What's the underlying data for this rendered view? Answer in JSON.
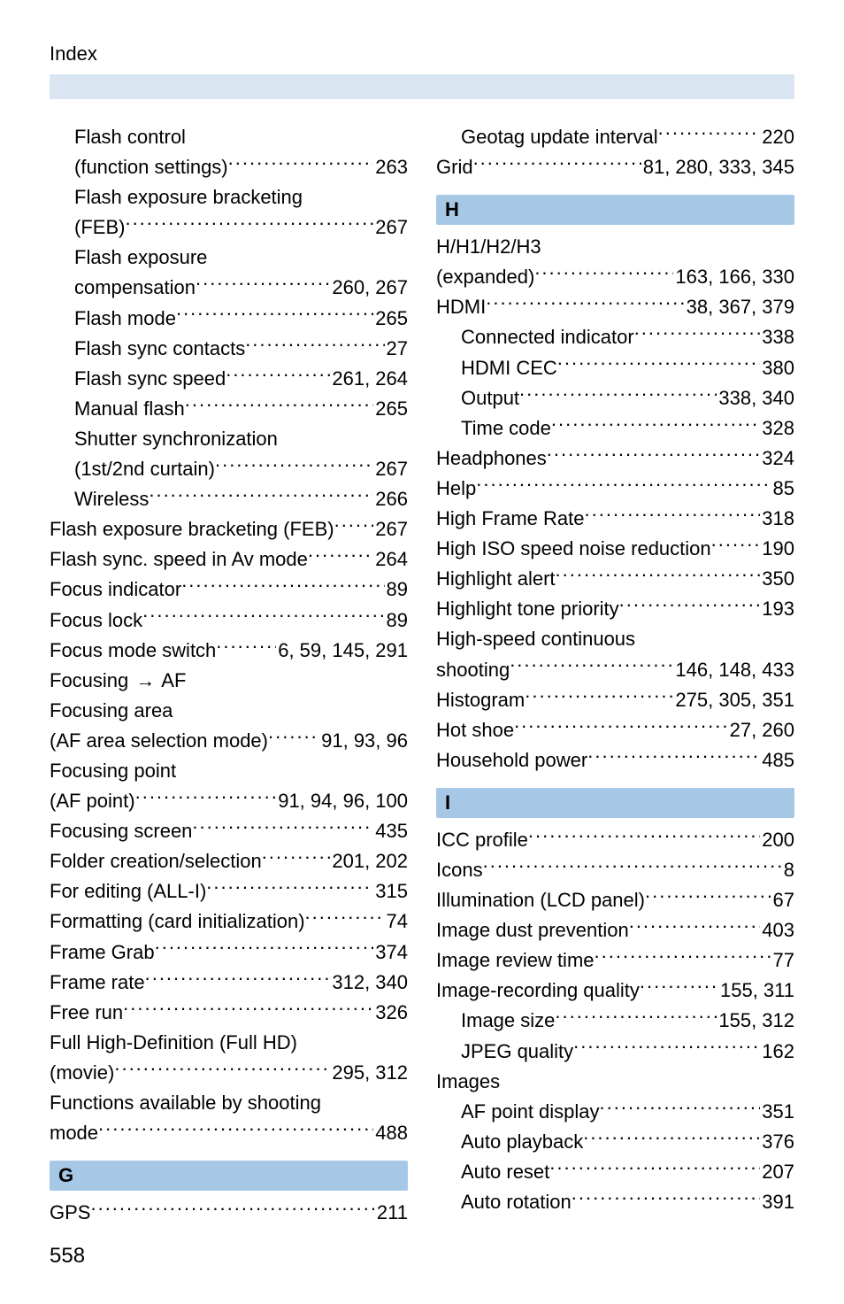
{
  "header": "Index",
  "page_number": "558",
  "colors": {
    "header_band": "#d9e6f2",
    "section_head": "#a6c8e6",
    "text": "#000000",
    "background": "#ffffff"
  },
  "typography": {
    "body_fontsize_pt": 16,
    "header_fontsize_pt": 16,
    "section_head_fontsize_pt": 16,
    "page_number_fontsize_pt": 18
  },
  "left_col": [
    {
      "label": "Flash control",
      "pages": "",
      "indent": 1,
      "nodots": true
    },
    {
      "label": "(function settings)",
      "pages": "263",
      "indent": 1
    },
    {
      "label": "Flash exposure bracketing",
      "pages": "",
      "indent": 1,
      "nodots": true
    },
    {
      "label": "(FEB)",
      "pages": "267",
      "indent": 1
    },
    {
      "label": "Flash exposure",
      "pages": "",
      "indent": 1,
      "nodots": true
    },
    {
      "label": "compensation",
      "pages": "260, 267",
      "indent": 1
    },
    {
      "label": "Flash mode",
      "pages": "265",
      "indent": 1
    },
    {
      "label": "Flash sync contacts",
      "pages": "27",
      "indent": 1
    },
    {
      "label": "Flash sync speed",
      "pages": "261, 264",
      "indent": 1
    },
    {
      "label": "Manual flash",
      "pages": "265",
      "indent": 1
    },
    {
      "label": "Shutter synchronization",
      "pages": "",
      "indent": 1,
      "nodots": true
    },
    {
      "label": "(1st/2nd curtain)",
      "pages": "267",
      "indent": 1
    },
    {
      "label": "Wireless",
      "pages": "266",
      "indent": 1
    },
    {
      "label": "Flash exposure bracketing (FEB)",
      "pages": "267",
      "indent": 0,
      "tight": true
    },
    {
      "label": "Flash sync. speed in Av mode",
      "pages": "264",
      "indent": 0
    },
    {
      "label": "Focus indicator",
      "pages": "89",
      "indent": 0
    },
    {
      "label": "Focus lock",
      "pages": "89",
      "indent": 0
    },
    {
      "label": "Focus mode switch",
      "pages": "6, 59, 145, 291",
      "indent": 0
    },
    {
      "label": "Focusing → AF",
      "pages": "",
      "indent": 0,
      "nodots": true,
      "arrow": true
    },
    {
      "label": "Focusing area",
      "pages": "",
      "indent": 0,
      "nodots": true
    },
    {
      "label": "(AF area selection mode)",
      "pages": "91, 93, 96",
      "indent": 0
    },
    {
      "label": "Focusing point",
      "pages": "",
      "indent": 0,
      "nodots": true
    },
    {
      "label": "(AF point)",
      "pages": "91, 94, 96, 100",
      "indent": 0
    },
    {
      "label": "Focusing screen",
      "pages": "435",
      "indent": 0
    },
    {
      "label": "Folder creation/selection",
      "pages": "201, 202",
      "indent": 0
    },
    {
      "label": "For editing (ALL-I)",
      "pages": "315",
      "indent": 0
    },
    {
      "label": "Formatting (card initialization)",
      "pages": "74",
      "indent": 0
    },
    {
      "label": "Frame Grab",
      "pages": "374",
      "indent": 0
    },
    {
      "label": "Frame rate",
      "pages": "312, 340",
      "indent": 0
    },
    {
      "label": "Free run",
      "pages": "326",
      "indent": 0
    },
    {
      "label": "Full High-Definition (Full HD)",
      "pages": "",
      "indent": 0,
      "nodots": true
    },
    {
      "label": "(movie)",
      "pages": "295, 312",
      "indent": 0
    },
    {
      "label": "Functions available by shooting",
      "pages": "",
      "indent": 0,
      "nodots": true
    },
    {
      "label": "mode",
      "pages": "488",
      "indent": 0
    }
  ],
  "left_section_G": {
    "title": "G",
    "entries": [
      {
        "label": "GPS",
        "pages": "211",
        "indent": 0
      }
    ]
  },
  "right_pre": [
    {
      "label": "Geotag update interval",
      "pages": "220",
      "indent": 1
    },
    {
      "label": "Grid",
      "pages": "81, 280, 333, 345",
      "indent": 0
    }
  ],
  "right_section_H": {
    "title": "H",
    "entries": [
      {
        "label": "H/H1/H2/H3",
        "pages": "",
        "indent": 0,
        "nodots": true
      },
      {
        "label": "(expanded)",
        "pages": "163, 166, 330",
        "indent": 0
      },
      {
        "label": "HDMI",
        "pages": "38, 367, 379",
        "indent": 0
      },
      {
        "label": "Connected indicator",
        "pages": "338",
        "indent": 1
      },
      {
        "label": "HDMI CEC",
        "pages": "380",
        "indent": 1
      },
      {
        "label": "Output",
        "pages": "338, 340",
        "indent": 1
      },
      {
        "label": "Time code",
        "pages": "328",
        "indent": 1
      },
      {
        "label": "Headphones",
        "pages": "324",
        "indent": 0
      },
      {
        "label": "Help",
        "pages": "85",
        "indent": 0
      },
      {
        "label": "High Frame Rate",
        "pages": "318",
        "indent": 0
      },
      {
        "label": "High ISO speed noise reduction",
        "pages": "190",
        "indent": 0
      },
      {
        "label": "Highlight alert",
        "pages": "350",
        "indent": 0
      },
      {
        "label": "Highlight tone priority",
        "pages": "193",
        "indent": 0
      },
      {
        "label": "High-speed continuous",
        "pages": "",
        "indent": 0,
        "nodots": true
      },
      {
        "label": "shooting",
        "pages": "146, 148, 433",
        "indent": 0
      },
      {
        "label": "Histogram",
        "pages": "275, 305, 351",
        "indent": 0
      },
      {
        "label": "Hot shoe",
        "pages": "27, 260",
        "indent": 0
      },
      {
        "label": "Household power",
        "pages": "485",
        "indent": 0
      }
    ]
  },
  "right_section_I": {
    "title": "I",
    "entries": [
      {
        "label": "ICC profile",
        "pages": "200",
        "indent": 0
      },
      {
        "label": "Icons",
        "pages": "8",
        "indent": 0
      },
      {
        "label": "Illumination (LCD panel)",
        "pages": "67",
        "indent": 0
      },
      {
        "label": "Image dust prevention",
        "pages": "403",
        "indent": 0
      },
      {
        "label": "Image review time",
        "pages": "77",
        "indent": 0
      },
      {
        "label": "Image-recording quality",
        "pages": "155, 311",
        "indent": 0
      },
      {
        "label": "Image size",
        "pages": "155, 312",
        "indent": 1
      },
      {
        "label": "JPEG quality",
        "pages": "162",
        "indent": 1
      },
      {
        "label": "Images",
        "pages": "",
        "indent": 0,
        "nodots": true
      },
      {
        "label": "AF point display",
        "pages": "351",
        "indent": 1
      },
      {
        "label": "Auto playback",
        "pages": "376",
        "indent": 1
      },
      {
        "label": "Auto reset",
        "pages": "207",
        "indent": 1
      },
      {
        "label": "Auto rotation",
        "pages": "391",
        "indent": 1
      }
    ]
  }
}
